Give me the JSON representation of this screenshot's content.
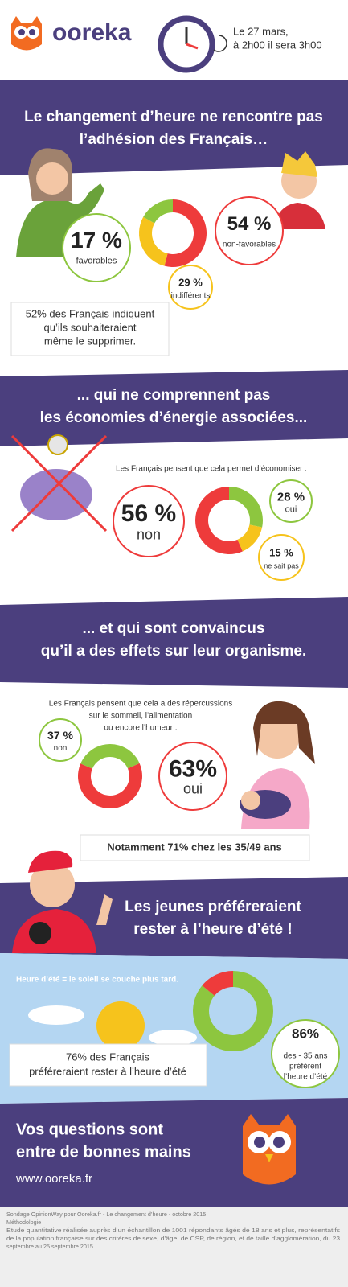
{
  "header": {
    "brand": "ooreka",
    "date_lines": [
      "Le 27 mars,",
      "à 2h00 il sera 3h00"
    ]
  },
  "section1": {
    "title_lines": [
      "Le changement d’heure ne rencontre pas",
      "l’adhésion des Français…"
    ],
    "donut": {
      "values": [
        54,
        29,
        17
      ],
      "colors": [
        "#ee3b3b",
        "#f6c31c",
        "#8dc63f"
      ],
      "labels": [
        "54 %",
        "29 %",
        "17 %"
      ],
      "captions": [
        "non-favorables",
        "indifférents",
        "favorables"
      ]
    },
    "note_lines": [
      "52% des Français indiquent",
      "qu’ils souhaiteraient",
      "même le supprimer."
    ]
  },
  "section2": {
    "title_lines": [
      "... qui ne comprennent pas",
      "les économies d’énergie associées..."
    ],
    "intro": "Les Français pensent que cela permet d’économiser :",
    "donut": {
      "values": [
        28,
        15,
        56
      ],
      "colors": [
        "#8dc63f",
        "#f6c31c",
        "#ee3b3b"
      ],
      "labels": [
        "28 %",
        "15 %",
        "56 %"
      ],
      "captions": [
        "oui",
        "ne sait pas",
        "non"
      ]
    }
  },
  "section3": {
    "title_lines": [
      "... et qui sont convaincus",
      "qu’il a des effets sur leur organisme."
    ],
    "intro_lines": [
      "Les Français pensent que cela a des répercussions",
      "sur le sommeil, l’alimentation",
      "ou encore l’humeur :"
    ],
    "donut": {
      "values": [
        37,
        63
      ],
      "colors": [
        "#8dc63f",
        "#ee3b3b"
      ],
      "labels": [
        "37 %",
        "63%"
      ],
      "captions": [
        "non",
        "oui"
      ]
    },
    "note": "Notamment 71% chez les 35/49 ans"
  },
  "section4": {
    "title_lines": [
      "Les jeunes préféreraient",
      "rester à l’heure d’été !"
    ]
  },
  "section5": {
    "fact": "Heure d’été = le soleil se couche plus tard.",
    "donut": {
      "values": [
        86,
        14
      ],
      "colors": [
        "#8dc63f",
        "#ee3b3b"
      ]
    },
    "bubble_lines": [
      "86%",
      "des - 35 ans",
      "préfèrent",
      "l’heure d’été"
    ],
    "note_lines": [
      "76% des Français",
      "préféreraient rester à l’heure d’été"
    ]
  },
  "closing": {
    "title_lines": [
      "Vos questions sont",
      "entre de bonnes mains"
    ],
    "url": "www.ooreka.fr"
  },
  "footer": {
    "lines": [
      "Sondage OpinionWay pour Ooreka.fr - Le changement d’heure - octobre 2015",
      "Méthodologie",
      "Etude quantitative réalisée auprès d’un échantillon de 1001 répondants âgés de 18 ans et plus, représentatifs",
      "de la population française sur des critères de sexe, d’âge, de CSP, de région, et de taille d’agglomération, du 23",
      "septembre au 25 septembre 2015."
    ]
  }
}
